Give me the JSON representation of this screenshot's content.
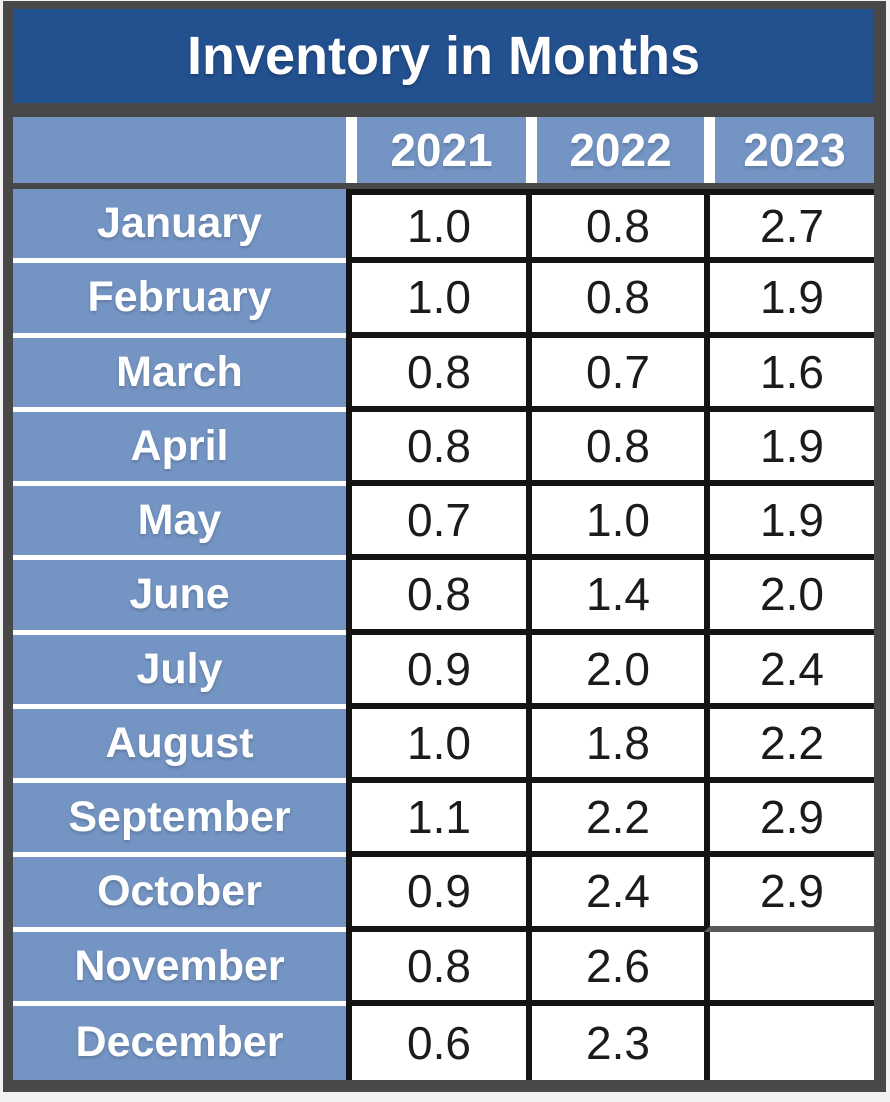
{
  "table": {
    "title": "Inventory in Months",
    "corner_label": "",
    "year_columns": [
      "2021",
      "2022",
      "2023"
    ],
    "rows": [
      {
        "month": "January",
        "values": [
          "1.0",
          "0.8",
          "2.7"
        ]
      },
      {
        "month": "February",
        "values": [
          "1.0",
          "0.8",
          "1.9"
        ]
      },
      {
        "month": "March",
        "values": [
          "0.8",
          "0.7",
          "1.6"
        ]
      },
      {
        "month": "April",
        "values": [
          "0.8",
          "0.8",
          "1.9"
        ]
      },
      {
        "month": "May",
        "values": [
          "0.7",
          "1.0",
          "1.9"
        ]
      },
      {
        "month": "June",
        "values": [
          "0.8",
          "1.4",
          "2.0"
        ]
      },
      {
        "month": "July",
        "values": [
          "0.9",
          "2.0",
          "2.4"
        ]
      },
      {
        "month": "August",
        "values": [
          "1.0",
          "1.8",
          "2.2"
        ]
      },
      {
        "month": "September",
        "values": [
          "1.1",
          "2.2",
          "2.9"
        ]
      },
      {
        "month": "October",
        "values": [
          "0.9",
          "2.4",
          "2.9"
        ]
      },
      {
        "month": "November",
        "values": [
          "0.8",
          "2.6",
          ""
        ]
      },
      {
        "month": "December",
        "values": [
          "0.6",
          "2.3",
          ""
        ]
      }
    ]
  },
  "chart_data": {
    "type": "table",
    "title": "Inventory in Months",
    "categories": [
      "January",
      "February",
      "March",
      "April",
      "May",
      "June",
      "July",
      "August",
      "September",
      "October",
      "November",
      "December"
    ],
    "series": [
      {
        "name": "2021",
        "values": [
          1.0,
          1.0,
          0.8,
          0.8,
          0.7,
          0.8,
          0.9,
          1.0,
          1.1,
          0.9,
          0.8,
          0.6
        ]
      },
      {
        "name": "2022",
        "values": [
          0.8,
          0.8,
          0.7,
          0.8,
          1.0,
          1.4,
          2.0,
          1.8,
          2.2,
          2.4,
          2.6,
          2.3
        ]
      },
      {
        "name": "2023",
        "values": [
          2.7,
          1.9,
          1.6,
          1.9,
          1.9,
          2.0,
          2.4,
          2.2,
          2.9,
          2.9,
          null,
          null
        ]
      }
    ],
    "layout": {
      "header_fill": "#7494C3",
      "title_fill": "#23508F",
      "grid": true
    }
  },
  "colors": {
    "frame_gray": "#484848",
    "title_blue": "#23508F",
    "accent_blue": "#7494C3",
    "cell_border_black": "#141414",
    "faded_border_gray": "#5a5a5a",
    "text_white": "#ffffff",
    "text_black": "#1b1b1b"
  }
}
